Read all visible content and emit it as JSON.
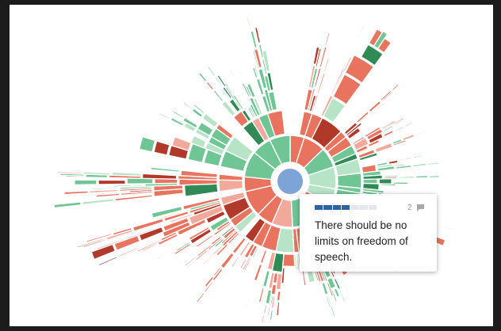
{
  "center_node_color": "#7ea3d6",
  "palette": {
    "red": "#e8735f",
    "red_light": "#f2a99c",
    "red_dark": "#b0392a",
    "green": "#6fc594",
    "green_light": "#b7e3c7",
    "green_dark": "#2f8a56",
    "blue_dark": "#2e63a3",
    "blue_light": "#e3e8ef"
  },
  "tooltip": {
    "agreement_segments": [
      {
        "filled": true
      },
      {
        "filled": true
      },
      {
        "filled": true
      },
      {
        "filled": true
      },
      {
        "filled": false
      },
      {
        "filled": false
      },
      {
        "filled": false
      }
    ],
    "comment_count": "2",
    "comment_icon": "comment-bubble-icon",
    "statement": "There should be no limits on freedom of speech."
  }
}
